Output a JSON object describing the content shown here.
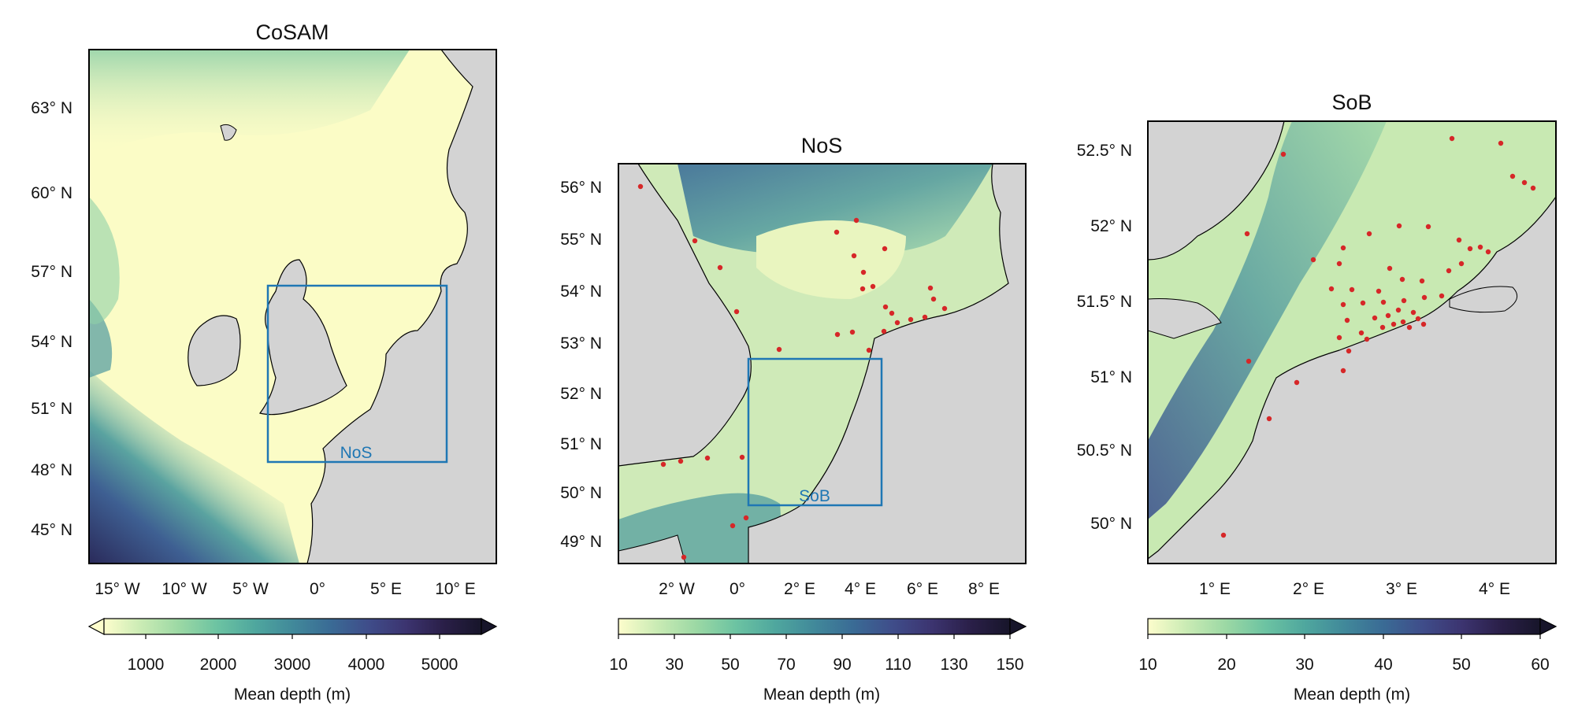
{
  "colors": {
    "land": "#d3d3d3",
    "box": "#1f77b4",
    "station": "#d62728",
    "frame": "#000000",
    "colormap_deep": [
      "#fdfdcc",
      "#c9ebb4",
      "#9bd8a4",
      "#6cc3a2",
      "#4fa79e",
      "#41899a",
      "#3a6b95",
      "#3f4d8a",
      "#3c3470",
      "#2a1f48",
      "#17152a"
    ]
  },
  "panels": [
    {
      "title": "CoSAM",
      "lon_ticks": [
        "15° W",
        "10° W",
        "5° W",
        "0°",
        "5° E",
        "10° E"
      ],
      "lat_ticks": [
        "63° N",
        "60° N",
        "57° N",
        "54° N",
        "51° N",
        "48° N",
        "45° N"
      ],
      "box_label": "NoS",
      "colorbar": {
        "ticks": [
          "1000",
          "2000",
          "3000",
          "4000",
          "5000"
        ],
        "label": "Mean depth (m)",
        "extend": "both"
      }
    },
    {
      "title": "NoS",
      "lon_ticks": [
        "2° W",
        "0°",
        "2° E",
        "4° E",
        "6° E",
        "8° E"
      ],
      "lat_ticks": [
        "56° N",
        "55° N",
        "54° N",
        "53° N",
        "52° N",
        "51° N",
        "50° N",
        "49° N"
      ],
      "box_label": "SoB",
      "colorbar": {
        "ticks": [
          "10",
          "30",
          "50",
          "70",
          "90",
          "110",
          "130",
          "150"
        ],
        "label": "Mean depth (m)",
        "extend": "max"
      }
    },
    {
      "title": "SoB",
      "lon_ticks": [
        "1° E",
        "2° E",
        "3° E",
        "4° E"
      ],
      "lat_ticks": [
        "52.5° N",
        "52° N",
        "51.5° N",
        "51° N",
        "50.5° N",
        "50° N"
      ],
      "box_label": "",
      "colorbar": {
        "ticks": [
          "10",
          "20",
          "30",
          "40",
          "50",
          "60"
        ],
        "label": "Mean depth (m)",
        "extend": "max"
      }
    }
  ]
}
